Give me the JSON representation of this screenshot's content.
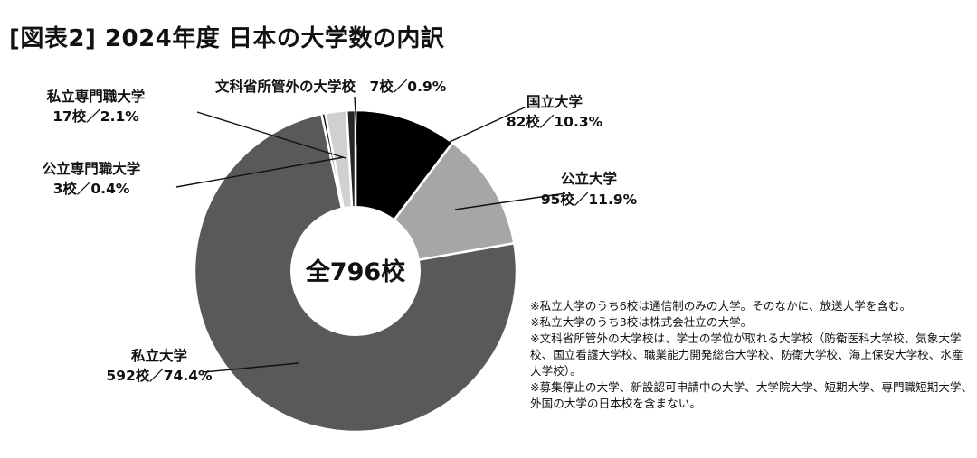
{
  "title": "[図表2] 2024年度 日本の大学数の内訳",
  "center_label": "全796校",
  "notes": [
    "※私立大学のうち6校は通信制のみの大学。そのなかに、放送大学を含む。",
    "※私立大学のうち3校は株式会社立の大学。",
    "※文科省所管外の大学校は、学士の学位が取れる大学校（防衛医科大学校、気象大学校、国立看護大学校、職業能力開発総合大学校、防衛大学校、海上保安大学校、水産大学校）。",
    "※募集停止の大学、新設認可申請中の大学、大学院大学、短期大学、専門職短期大学、外国の大学の日本校を含まない。"
  ],
  "chart_data": {
    "type": "pie",
    "donut": true,
    "title": "[図表2] 2024年度 日本の大学数の内訳",
    "total": 796,
    "legend": "none",
    "series": [
      {
        "name": "国立大学",
        "count": 82,
        "percent": 10.3,
        "label_line1": "国立大学",
        "label_line2": "82校／10.3%",
        "color": "#000000"
      },
      {
        "name": "公立大学",
        "count": 95,
        "percent": 11.9,
        "label_line1": "公立大学",
        "label_line2": "95校／11.9%",
        "color": "#a6a6a6"
      },
      {
        "name": "私立大学",
        "count": 592,
        "percent": 74.4,
        "label_line1": "私立大学",
        "label_line2": "592校／74.4%",
        "color": "#595959"
      },
      {
        "name": "公立専門職大学",
        "count": 3,
        "percent": 0.4,
        "label_line1": "公立専門職大学",
        "label_line2": "3校／0.4%",
        "color": "#111111"
      },
      {
        "name": "私立専門職大学",
        "count": 17,
        "percent": 2.1,
        "label_line1": "私立専門職大学",
        "label_line2": "17校／2.1%",
        "color": "#d0d0d0"
      },
      {
        "name": "文科省所管外の大学校",
        "count": 7,
        "percent": 0.9,
        "label_line1": "文科省所管外の大学校　7校／0.9%",
        "label_line2": "",
        "color": "#262626"
      }
    ]
  }
}
